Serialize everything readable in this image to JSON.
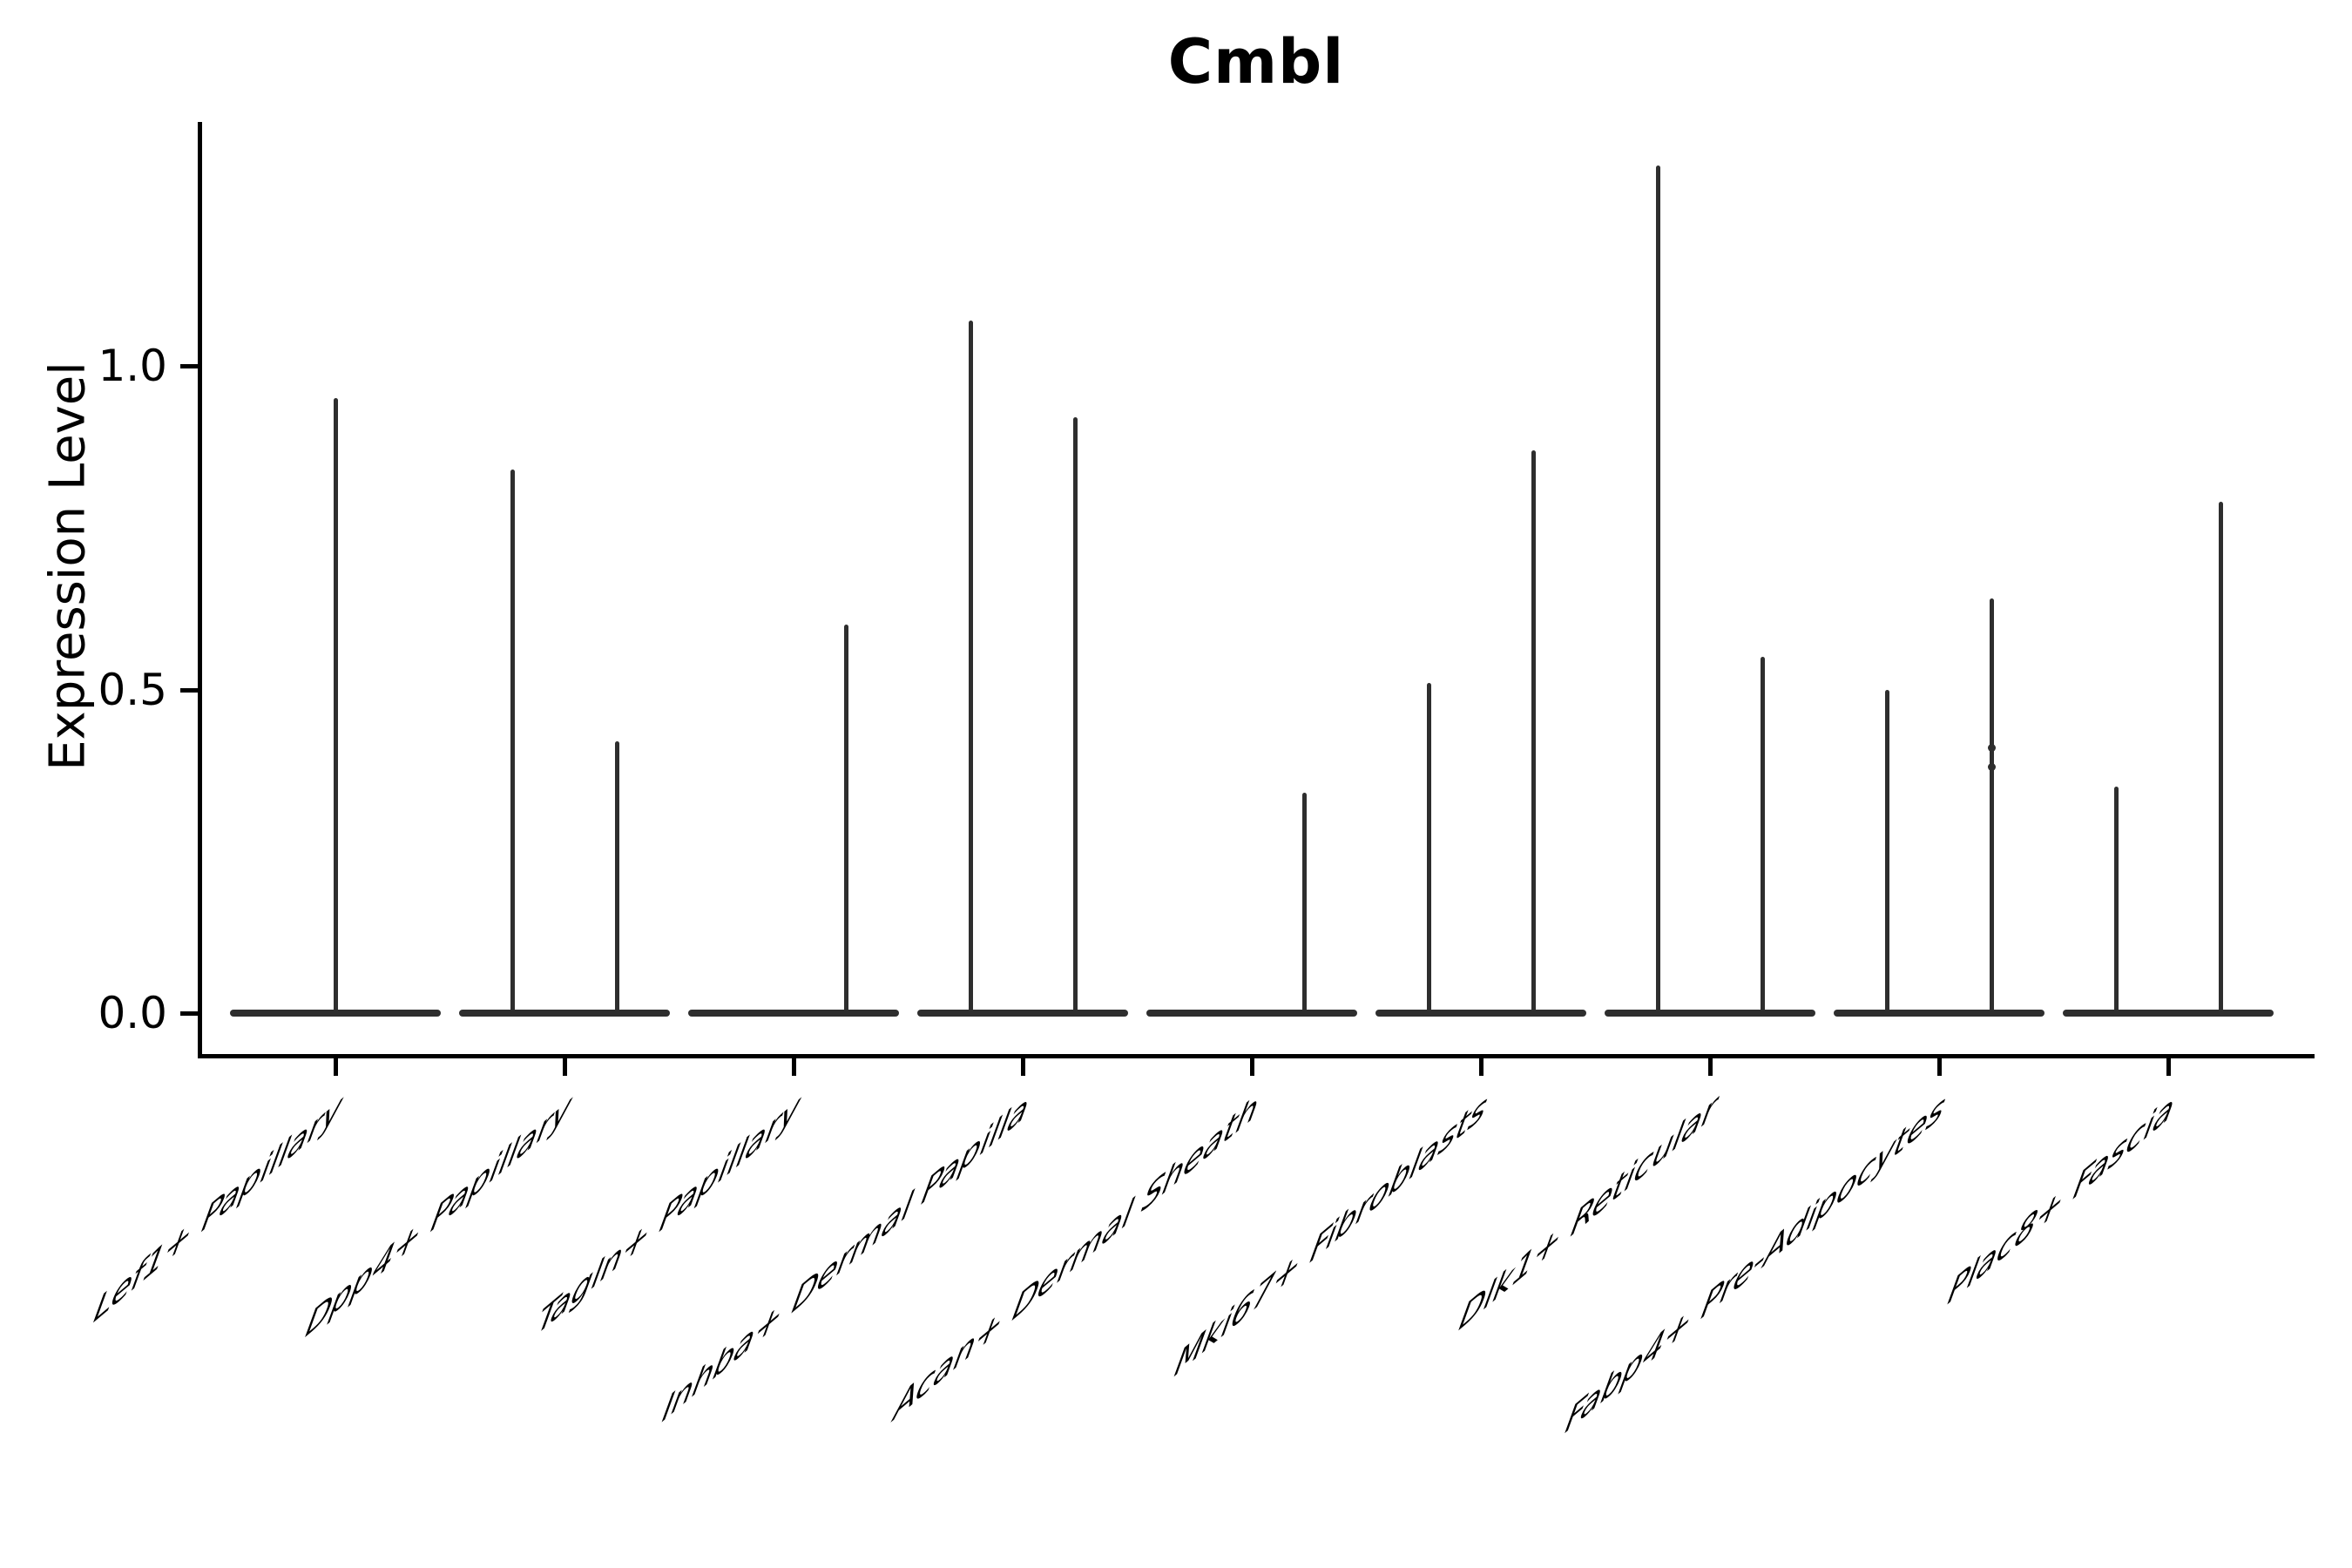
{
  "figure": {
    "title": "Cmbl"
  },
  "y_axis": {
    "label": "Expression Level",
    "tick_labels": [
      "0.0",
      "0.5",
      "1.0"
    ],
    "tick_values": [
      0.0,
      0.5,
      1.0
    ]
  },
  "style": {
    "violin_color": "#2e2e2e",
    "axis_color": "#000000",
    "text_color": "#000000",
    "background": "#ffffff"
  },
  "chart_data": {
    "type": "violin",
    "title": "Cmbl",
    "xlabel": "",
    "ylabel": "Expression Level",
    "ylim": [
      -0.06,
      1.38
    ],
    "yticks": [
      0.0,
      0.5,
      1.0
    ],
    "grid": false,
    "legend_position": "none",
    "note": "Single-gene violin plot; every violin is collapsed to a flat bar at expression 0 with one or two needle-thin density spikes reaching the listed maximum expression value. Spike position is its horizontal placement within the category slot.",
    "categories": [
      {
        "label": "Lef1+ Papillary",
        "spikes": [
          {
            "position": "center",
            "max_value": 0.95
          }
        ]
      },
      {
        "label": "Dpp4+ Papillary",
        "spikes": [
          {
            "position": "left",
            "max_value": 0.84
          },
          {
            "position": "right",
            "max_value": 0.42
          }
        ]
      },
      {
        "label": "Tagln+ Papillary",
        "spikes": [
          {
            "position": "right",
            "max_value": 0.6
          }
        ]
      },
      {
        "label": "Inhba+ Dermal Papilla",
        "spikes": [
          {
            "position": "left",
            "max_value": 1.07
          },
          {
            "position": "right",
            "max_value": 0.92
          }
        ]
      },
      {
        "label": "Acan+ Dermal Sheath",
        "spikes": [
          {
            "position": "right",
            "max_value": 0.34
          }
        ]
      },
      {
        "label": "Mki67+ Fibroblasts",
        "spikes": [
          {
            "position": "left",
            "max_value": 0.51
          },
          {
            "position": "right",
            "max_value": 0.87
          }
        ]
      },
      {
        "label": "Dlk1+ Reticular",
        "spikes": [
          {
            "position": "left",
            "max_value": 1.31
          },
          {
            "position": "right",
            "max_value": 0.55
          }
        ]
      },
      {
        "label": "Fabp4+ Pre-Adipocytes",
        "spikes": [
          {
            "position": "left",
            "max_value": 0.5
          },
          {
            "position": "right",
            "max_value": 0.64,
            "knots": [
              0.41,
              0.38
            ]
          }
        ]
      },
      {
        "label": "Plac8+ Fascia",
        "spikes": [
          {
            "position": "left",
            "max_value": 0.35
          },
          {
            "position": "right",
            "max_value": 0.79
          }
        ]
      }
    ]
  }
}
